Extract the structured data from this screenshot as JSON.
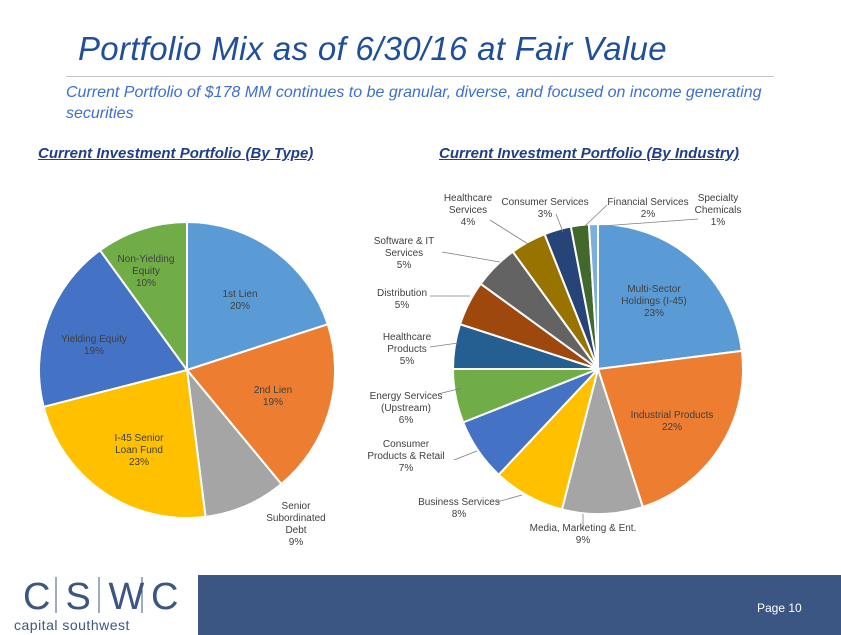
{
  "title": "Portfolio Mix as of 6/30/16 at Fair Value",
  "subtitle": "Current Portfolio of $178 MM continues to be granular, diverse, and focused on income generating securities",
  "footer": {
    "logo_text": "CSWC",
    "logo_subtitle": "capital southwest",
    "page_label": "Page 10"
  },
  "colors": {
    "title": "#1f4e9a",
    "subtitle": "#3d6fcf",
    "footer": "#3b5682"
  },
  "chart_data": [
    {
      "type": "pie",
      "title": "Current Investment Portfolio (By Type)",
      "slices": [
        {
          "label": "1st Lien",
          "value": 20,
          "pct_label": "20%",
          "color": "#5b9bd5"
        },
        {
          "label": "2nd Lien",
          "value": 19,
          "pct_label": "19%",
          "color": "#ed7d31"
        },
        {
          "label": "Senior Subordinated Debt",
          "value": 9,
          "pct_label": "9%",
          "color": "#a5a5a5"
        },
        {
          "label": "I-45 Senior Loan Fund",
          "value": 23,
          "pct_label": "23%",
          "color": "#ffc000"
        },
        {
          "label": "Yielding Equity",
          "value": 19,
          "pct_label": "19%",
          "color": "#4472c4"
        },
        {
          "label": "Non-Yielding Equity",
          "value": 10,
          "pct_label": "10%",
          "color": "#70ad47"
        }
      ]
    },
    {
      "type": "pie",
      "title": "Current Investment Portfolio (By Industry)",
      "slices": [
        {
          "label": "Multi-Sector Holdings (I-45)",
          "value": 23,
          "pct_label": "23%",
          "color": "#5b9bd5"
        },
        {
          "label": "Industrial Products",
          "value": 22,
          "pct_label": "22%",
          "color": "#ed7d31"
        },
        {
          "label": "Media, Marketing & Ent.",
          "value": 9,
          "pct_label": "9%",
          "color": "#a5a5a5"
        },
        {
          "label": "Business Services",
          "value": 8,
          "pct_label": "8%",
          "color": "#ffc000"
        },
        {
          "label": "Consumer Products & Retail",
          "value": 7,
          "pct_label": "7%",
          "color": "#4472c4"
        },
        {
          "label": "Energy Services (Upstream)",
          "value": 6,
          "pct_label": "6%",
          "color": "#70ad47"
        },
        {
          "label": "Healthcare Products",
          "value": 5,
          "pct_label": "5%",
          "color": "#255e91"
        },
        {
          "label": "Distribution",
          "value": 5,
          "pct_label": "5%",
          "color": "#9e480e"
        },
        {
          "label": "Software & IT Services",
          "value": 5,
          "pct_label": "5%",
          "color": "#636363"
        },
        {
          "label": "Healthcare Services",
          "value": 4,
          "pct_label": "4%",
          "color": "#997300"
        },
        {
          "label": "Consumer Services",
          "value": 3,
          "pct_label": "3%",
          "color": "#264478"
        },
        {
          "label": "Financial Services",
          "value": 2,
          "pct_label": "2%",
          "color": "#43682b"
        },
        {
          "label": "Specialty Chemicals",
          "value": 1,
          "pct_label": "1%",
          "color": "#7cafdd"
        }
      ]
    }
  ]
}
